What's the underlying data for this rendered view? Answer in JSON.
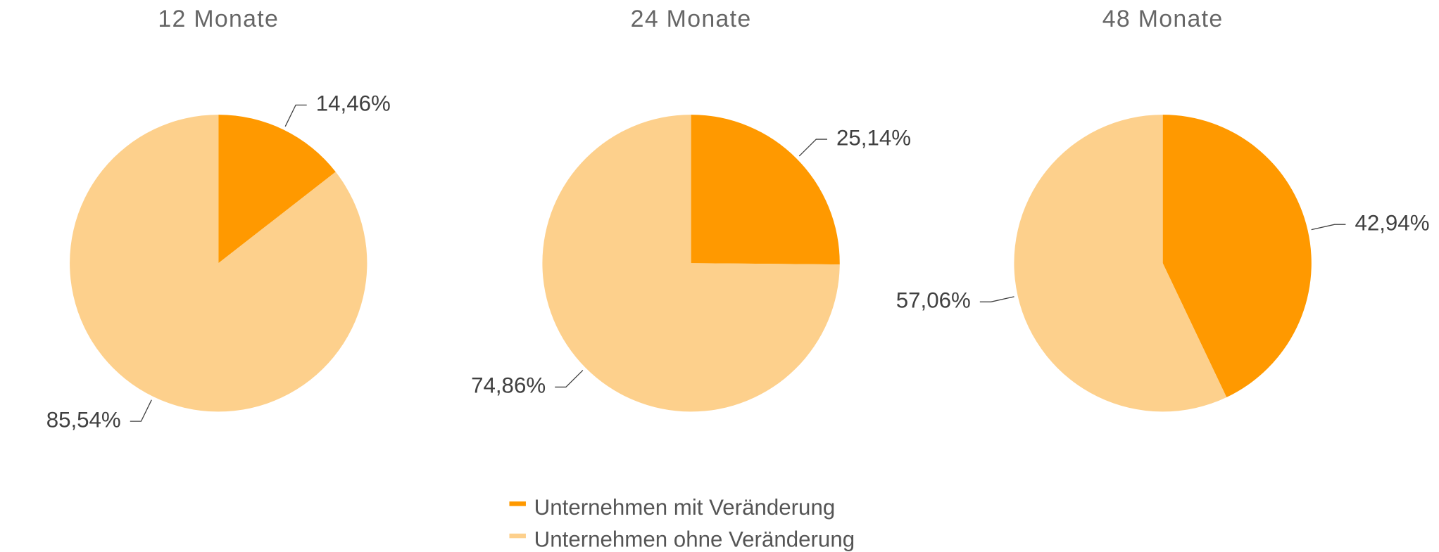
{
  "chart_data": [
    {
      "type": "pie",
      "title": "12 Monate",
      "values": [
        14.46,
        85.54
      ],
      "value_labels": [
        "14,46%",
        "85,54%"
      ]
    },
    {
      "type": "pie",
      "title": "24 Monate",
      "values": [
        25.14,
        74.86
      ],
      "value_labels": [
        "25,14%",
        "74,86%"
      ]
    },
    {
      "type": "pie",
      "title": "48 Monate",
      "values": [
        42.94,
        57.06
      ],
      "value_labels": [
        "42,94%",
        "57,06%"
      ]
    }
  ],
  "legend": {
    "labels": [
      "Unternehmen mit Veränderung",
      "Unternehmen ohne Veränderung"
    ],
    "colors": [
      "#ff9900",
      "#fdd08c"
    ]
  }
}
